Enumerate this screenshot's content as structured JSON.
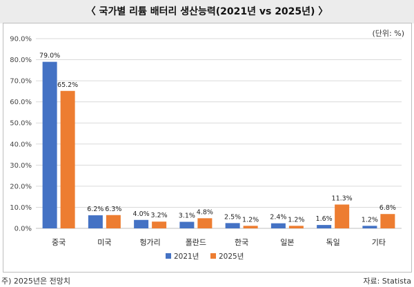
{
  "header": {
    "title": "〈 국가별 리튬 배터리 생산능력(2021년 vs 2025년) 〉"
  },
  "unit_label": "(단위: %)",
  "footnote": "주) 2025년은 전망치",
  "source": "자료: Statista",
  "colors": {
    "s2021": "#4472c4",
    "s2025": "#ed7d31",
    "grid": "#d9d9d9"
  },
  "chart_data": {
    "type": "bar",
    "title": "국가별 리튬 배터리 생산능력(2021년 vs 2025년)",
    "categories": [
      "중국",
      "미국",
      "헝가리",
      "폴란드",
      "한국",
      "일본",
      "독일",
      "기타"
    ],
    "series": [
      {
        "name": "2021년",
        "values": [
          79.0,
          6.2,
          4.0,
          3.1,
          2.5,
          2.4,
          1.6,
          1.2
        ],
        "labels": [
          "79.0%",
          "6.2%",
          "4.0%",
          "3.1%",
          "2.5%",
          "2.4%",
          "1.6%",
          "1.2%"
        ]
      },
      {
        "name": "2025년",
        "values": [
          65.2,
          6.3,
          3.2,
          4.8,
          1.2,
          1.2,
          11.3,
          6.8
        ],
        "labels": [
          "65.2%",
          "6.3%",
          "3.2%",
          "4.8%",
          "1.2%",
          "1.2%",
          "11.3%",
          "6.8%"
        ]
      }
    ],
    "y_ticks": [
      "0.0%",
      "10.0%",
      "20.0%",
      "30.0%",
      "40.0%",
      "50.0%",
      "60.0%",
      "70.0%",
      "80.0%",
      "90.0%"
    ],
    "ylim": [
      0,
      90
    ],
    "grid": true,
    "legend_position": "bottom"
  }
}
